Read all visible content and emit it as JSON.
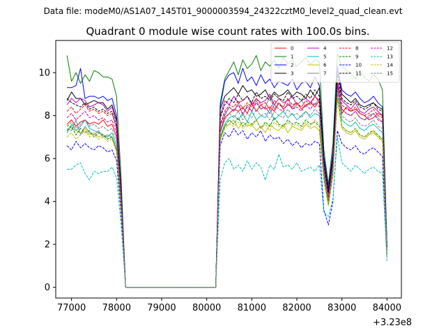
{
  "header_text": "Data file: modeM0/AS1A07_145T01_9000003594_24322cztM0_level2_quad_clean.evt",
  "chart_data": {
    "type": "line",
    "title": "Quadrant 0 module wise count rates with 100.0s bins.",
    "xlabel": "",
    "ylabel": "",
    "x_offset_label": "+3.23e8",
    "xlim": [
      76650,
      84320
    ],
    "ylim": [
      -0.5,
      11.5
    ],
    "x_ticks": [
      77000,
      78000,
      79000,
      80000,
      81000,
      82000,
      83000,
      84000
    ],
    "x_tick_labels": [
      "77000",
      "78000",
      "79000",
      "80000",
      "81000",
      "82000",
      "83000",
      "84000"
    ],
    "y_ticks": [
      0,
      2,
      4,
      6,
      8,
      10
    ],
    "y_tick_labels": [
      "0",
      "2",
      "4",
      "6",
      "8",
      "10"
    ],
    "gap": [
      78200,
      80100
    ],
    "x_segment1": [
      76900,
      77000,
      77100,
      77200,
      77300,
      77400,
      77500,
      77600,
      77700,
      77800,
      77900,
      78000,
      78100
    ],
    "x_segment2": [
      80200,
      80300,
      80400,
      80500,
      80600,
      80700,
      80800,
      80900,
      81000,
      81100,
      81200,
      81300,
      81400,
      81500,
      81600,
      81700,
      81800,
      81900,
      82000,
      82100,
      82200,
      82300,
      82400,
      82500,
      82600,
      82700,
      82800,
      82900,
      83000,
      83100,
      83200,
      83300,
      83400,
      83500,
      83600,
      83700,
      83800,
      83900,
      84000
    ],
    "series": [
      {
        "name": "0",
        "color": "#ff0000",
        "dash": false,
        "seg1": [
          7.6,
          7.8,
          7.5,
          7.7,
          7.8,
          7.6,
          7.7,
          7.6,
          7.8,
          7.5,
          7.6,
          7.0,
          4.3
        ],
        "seg2": [
          0.0,
          7.2,
          7.9,
          8.1,
          8.3,
          8.2,
          8.4,
          8.1,
          8.6,
          8.2,
          8.5,
          8.3,
          8.4,
          8.2,
          8.6,
          8.3,
          8.5,
          8.4,
          8.6,
          8.3,
          8.5,
          8.6,
          8.4,
          8.7,
          5.5,
          4.2,
          5.8,
          9.6,
          8.1,
          8.4,
          8.2,
          8.3,
          8.1,
          8.0,
          7.8,
          7.9,
          8.1,
          8.0,
          1.8
        ]
      },
      {
        "name": "1",
        "color": "#008000",
        "dash": false,
        "seg1": [
          10.8,
          9.6,
          10.0,
          9.5,
          9.9,
          9.6,
          10.1,
          10.0,
          9.8,
          9.8,
          9.7,
          8.9,
          5.1
        ],
        "seg2": [
          0.0,
          8.6,
          9.7,
          10.1,
          10.5,
          9.9,
          10.6,
          10.2,
          10.4,
          10.8,
          10.1,
          10.5,
          10.3,
          10.6,
          10.2,
          10.7,
          10.4,
          10.6,
          10.3,
          10.5,
          10.7,
          10.4,
          10.6,
          10.5,
          6.4,
          4.8,
          6.7,
          10.9,
          10.3,
          10.1,
          10.0,
          9.7,
          10.1,
          9.8,
          9.6,
          9.9,
          9.7,
          9.2,
          2.0
        ]
      },
      {
        "name": "2",
        "color": "#0000ff",
        "dash": false,
        "seg1": [
          9.3,
          9.3,
          9.4,
          10.2,
          8.8,
          8.9,
          8.9,
          8.8,
          8.9,
          8.7,
          8.8,
          8.0,
          4.6
        ],
        "seg2": [
          0.0,
          8.4,
          9.6,
          9.9,
          10.0,
          9.5,
          10.2,
          9.6,
          9.8,
          9.4,
          9.9,
          9.5,
          9.7,
          9.3,
          9.6,
          9.5,
          9.4,
          9.7,
          9.2,
          9.5,
          9.6,
          9.3,
          9.8,
          9.4,
          6.1,
          4.6,
          6.3,
          10.3,
          9.2,
          9.0,
          8.9,
          9.1,
          8.8,
          8.6,
          8.7,
          8.9,
          8.6,
          8.4,
          1.9
        ]
      },
      {
        "name": "3",
        "color": "#000000",
        "dash": false,
        "seg1": [
          8.7,
          9.1,
          8.8,
          8.8,
          8.5,
          8.6,
          8.7,
          8.6,
          8.6,
          8.3,
          8.5,
          7.8,
          4.5
        ],
        "seg2": [
          0.0,
          8.3,
          8.9,
          9.1,
          9.3,
          9.0,
          9.4,
          9.1,
          9.2,
          8.9,
          9.0,
          9.2,
          8.8,
          9.1,
          8.9,
          9.0,
          9.2,
          8.9,
          9.1,
          9.0,
          8.8,
          9.2,
          8.9,
          9.3,
          5.9,
          4.5,
          6.1,
          10.1,
          9.0,
          8.8,
          8.6,
          8.8,
          8.5,
          8.4,
          8.5,
          8.6,
          8.4,
          8.3,
          1.9
        ]
      },
      {
        "name": "4",
        "color": "#bf00bf",
        "dash": false,
        "seg1": [
          8.5,
          8.8,
          8.6,
          8.8,
          8.7,
          8.4,
          8.5,
          8.6,
          8.5,
          8.2,
          8.4,
          7.7,
          4.4
        ],
        "seg2": [
          0.0,
          8.0,
          8.7,
          8.5,
          8.9,
          8.6,
          8.7,
          8.9,
          8.5,
          8.8,
          8.6,
          8.7,
          9.0,
          8.5,
          8.8,
          8.6,
          8.7,
          8.9,
          8.5,
          8.7,
          8.8,
          8.6,
          8.9,
          8.7,
          5.6,
          4.3,
          5.9,
          9.6,
          8.7,
          8.5,
          8.3,
          8.6,
          8.2,
          8.1,
          8.3,
          8.4,
          8.2,
          8.0,
          1.8
        ]
      },
      {
        "name": "5",
        "color": "#00bfbf",
        "dash": false,
        "seg1": [
          7.2,
          7.6,
          7.3,
          7.5,
          7.8,
          7.4,
          7.3,
          7.2,
          7.1,
          7.0,
          7.2,
          6.6,
          3.8
        ],
        "seg2": [
          0.0,
          7.0,
          7.6,
          7.9,
          8.0,
          7.8,
          8.1,
          7.7,
          8.2,
          7.8,
          8.0,
          7.9,
          8.3,
          7.8,
          8.0,
          8.2,
          7.9,
          8.1,
          7.8,
          8.0,
          8.2,
          7.9,
          8.1,
          8.0,
          5.3,
          4.0,
          5.5,
          9.3,
          7.8,
          7.6,
          7.5,
          7.7,
          7.4,
          7.3,
          7.5,
          7.6,
          7.4,
          7.2,
          1.7
        ]
      },
      {
        "name": "6",
        "color": "#bfbf00",
        "dash": false,
        "seg1": [
          7.6,
          7.4,
          7.3,
          7.2,
          7.4,
          7.1,
          7.2,
          7.0,
          7.1,
          6.9,
          7.0,
          6.4,
          3.7
        ],
        "seg2": [
          0.0,
          6.9,
          7.5,
          7.6,
          7.8,
          7.4,
          7.7,
          7.5,
          7.6,
          7.3,
          7.5,
          7.2,
          7.6,
          7.4,
          7.3,
          7.6,
          7.2,
          7.5,
          7.4,
          7.3,
          7.6,
          7.4,
          7.5,
          7.3,
          5.0,
          3.8,
          5.2,
          8.8,
          7.4,
          7.2,
          7.1,
          7.3,
          7.0,
          6.9,
          7.1,
          7.2,
          7.0,
          6.8,
          1.6
        ]
      },
      {
        "name": "7",
        "color": "#808080",
        "dash": false,
        "seg1": [
          7.4,
          7.3,
          7.8,
          7.1,
          7.5,
          7.2,
          7.1,
          7.3,
          7.0,
          7.1,
          7.0,
          6.4,
          3.7
        ],
        "seg2": [
          0.0,
          7.3,
          8.0,
          8.4,
          8.2,
          8.6,
          8.0,
          8.5,
          8.2,
          8.7,
          8.3,
          8.4,
          8.9,
          8.3,
          8.6,
          8.4,
          8.8,
          8.3,
          8.5,
          8.7,
          8.4,
          8.6,
          8.5,
          8.8,
          5.5,
          4.2,
          5.7,
          9.4,
          8.3,
          8.1,
          8.0,
          8.2,
          7.9,
          7.8,
          8.0,
          8.1,
          7.9,
          7.7,
          1.8
        ]
      },
      {
        "name": "8",
        "color": "#ff0000",
        "dash": true,
        "seg1": [
          8.2,
          8.4,
          8.1,
          8.3,
          8.5,
          8.2,
          8.3,
          8.1,
          8.2,
          8.0,
          8.1,
          7.4,
          4.3
        ],
        "seg2": [
          0.0,
          7.6,
          8.2,
          8.5,
          8.4,
          8.7,
          8.3,
          8.6,
          8.4,
          8.8,
          8.5,
          8.6,
          8.3,
          8.7,
          8.5,
          8.4,
          8.8,
          8.5,
          8.6,
          8.4,
          8.7,
          8.5,
          8.9,
          8.6,
          5.6,
          4.2,
          5.9,
          9.5,
          8.5,
          8.3,
          8.2,
          8.4,
          8.1,
          8.0,
          8.1,
          8.3,
          8.0,
          7.9,
          1.8
        ]
      },
      {
        "name": "9",
        "color": "#008000",
        "dash": true,
        "seg1": [
          7.3,
          7.5,
          7.1,
          7.4,
          7.2,
          7.3,
          7.0,
          7.2,
          7.1,
          6.9,
          7.0,
          6.4,
          3.7
        ],
        "seg2": [
          0.0,
          7.0,
          7.5,
          7.8,
          7.6,
          7.9,
          7.5,
          7.7,
          7.6,
          7.8,
          7.4,
          7.7,
          7.5,
          7.9,
          7.6,
          7.5,
          7.8,
          7.6,
          7.7,
          7.5,
          7.8,
          7.6,
          7.7,
          7.5,
          5.1,
          3.9,
          5.3,
          9.0,
          7.5,
          7.3,
          7.2,
          7.4,
          7.1,
          7.0,
          7.2,
          7.3,
          7.1,
          6.9,
          1.6
        ]
      },
      {
        "name": "10",
        "color": "#0000ff",
        "dash": true,
        "seg1": [
          6.6,
          6.4,
          6.8,
          6.5,
          6.7,
          6.5,
          6.4,
          6.6,
          6.5,
          6.3,
          6.4,
          5.9,
          3.4
        ],
        "seg2": [
          0.0,
          6.6,
          7.2,
          7.0,
          7.4,
          7.1,
          7.3,
          6.9,
          7.2,
          7.0,
          7.3,
          6.8,
          7.1,
          6.9,
          7.0,
          6.7,
          6.9,
          6.6,
          6.8,
          6.5,
          6.7,
          6.6,
          6.8,
          6.7,
          3.6,
          2.9,
          4.0,
          7.3,
          6.7,
          6.5,
          6.4,
          6.6,
          6.3,
          6.2,
          6.4,
          6.5,
          6.3,
          6.1,
          1.4
        ]
      },
      {
        "name": "11",
        "color": "#000000",
        "dash": true,
        "seg1": [
          8.8,
          8.6,
          8.5,
          8.4,
          8.6,
          8.3,
          8.4,
          8.2,
          8.3,
          8.1,
          8.2,
          7.5,
          4.3
        ],
        "seg2": [
          0.0,
          7.9,
          8.5,
          8.8,
          8.6,
          9.0,
          8.7,
          8.9,
          8.6,
          9.1,
          8.8,
          8.9,
          8.7,
          9.0,
          8.8,
          8.7,
          9.1,
          8.8,
          8.9,
          8.7,
          9.0,
          8.8,
          9.2,
          8.9,
          5.8,
          4.4,
          6.0,
          9.9,
          8.8,
          8.6,
          8.5,
          8.7,
          8.4,
          8.3,
          8.4,
          8.6,
          8.3,
          8.2,
          1.9
        ]
      },
      {
        "name": "12",
        "color": "#bf00bf",
        "dash": true,
        "seg1": [
          7.9,
          8.1,
          7.8,
          8.0,
          8.2,
          7.9,
          8.0,
          7.8,
          7.9,
          7.7,
          7.8,
          7.2,
          4.1
        ],
        "seg2": [
          0.0,
          7.5,
          8.1,
          8.4,
          8.2,
          8.5,
          8.1,
          8.4,
          8.2,
          8.6,
          8.3,
          8.4,
          8.1,
          8.5,
          8.3,
          8.2,
          8.6,
          8.3,
          8.4,
          8.2,
          8.5,
          8.3,
          8.6,
          8.4,
          5.5,
          4.1,
          5.7,
          9.4,
          8.3,
          8.1,
          8.0,
          8.2,
          7.9,
          7.8,
          7.9,
          8.1,
          7.8,
          7.7,
          1.8
        ]
      },
      {
        "name": "13",
        "color": "#00bfbf",
        "dash": true,
        "seg1": [
          5.5,
          5.5,
          5.7,
          5.8,
          5.3,
          5.0,
          5.4,
          5.3,
          5.4,
          5.4,
          5.6,
          5.1,
          2.9
        ],
        "seg2": [
          0.0,
          5.0,
          5.8,
          6.0,
          5.5,
          5.7,
          5.4,
          5.9,
          5.5,
          5.8,
          5.6,
          5.0,
          5.7,
          5.5,
          6.2,
          5.6,
          5.7,
          5.5,
          5.8,
          5.4,
          5.5,
          5.6,
          5.4,
          5.7,
          3.5,
          3.3,
          4.1,
          7.0,
          5.8,
          5.6,
          5.4,
          5.7,
          5.5,
          5.3,
          5.5,
          5.6,
          5.4,
          5.3,
          1.2
        ]
      },
      {
        "name": "14",
        "color": "#bfbf00",
        "dash": true,
        "seg1": [
          7.0,
          7.2,
          6.9,
          7.1,
          7.3,
          7.0,
          7.1,
          6.9,
          7.0,
          6.8,
          6.9,
          6.3,
          3.6
        ],
        "seg2": [
          0.0,
          6.8,
          7.4,
          7.6,
          7.5,
          7.7,
          7.4,
          7.6,
          7.5,
          7.8,
          7.4,
          7.6,
          7.3,
          7.7,
          7.5,
          7.4,
          7.7,
          7.5,
          7.6,
          7.4,
          7.7,
          7.5,
          7.8,
          7.6,
          5.0,
          3.8,
          5.2,
          8.9,
          7.5,
          7.3,
          7.2,
          7.4,
          7.1,
          7.0,
          7.1,
          7.3,
          7.0,
          6.9,
          1.6
        ]
      },
      {
        "name": "15",
        "color": "#808080",
        "dash": true,
        "seg1": [
          7.5,
          7.7,
          7.4,
          7.6,
          7.8,
          7.5,
          7.6,
          7.4,
          7.5,
          7.3,
          7.4,
          6.8,
          3.9
        ],
        "seg2": [
          0.0,
          7.2,
          7.8,
          8.1,
          7.9,
          8.2,
          7.8,
          8.1,
          7.9,
          8.3,
          8.0,
          8.1,
          7.8,
          8.2,
          8.0,
          7.9,
          8.3,
          8.0,
          8.1,
          7.9,
          8.2,
          8.0,
          8.3,
          8.1,
          5.3,
          4.0,
          5.5,
          9.2,
          8.0,
          7.8,
          7.7,
          7.9,
          7.6,
          7.5,
          7.6,
          7.8,
          7.5,
          7.4,
          1.7
        ]
      }
    ]
  }
}
